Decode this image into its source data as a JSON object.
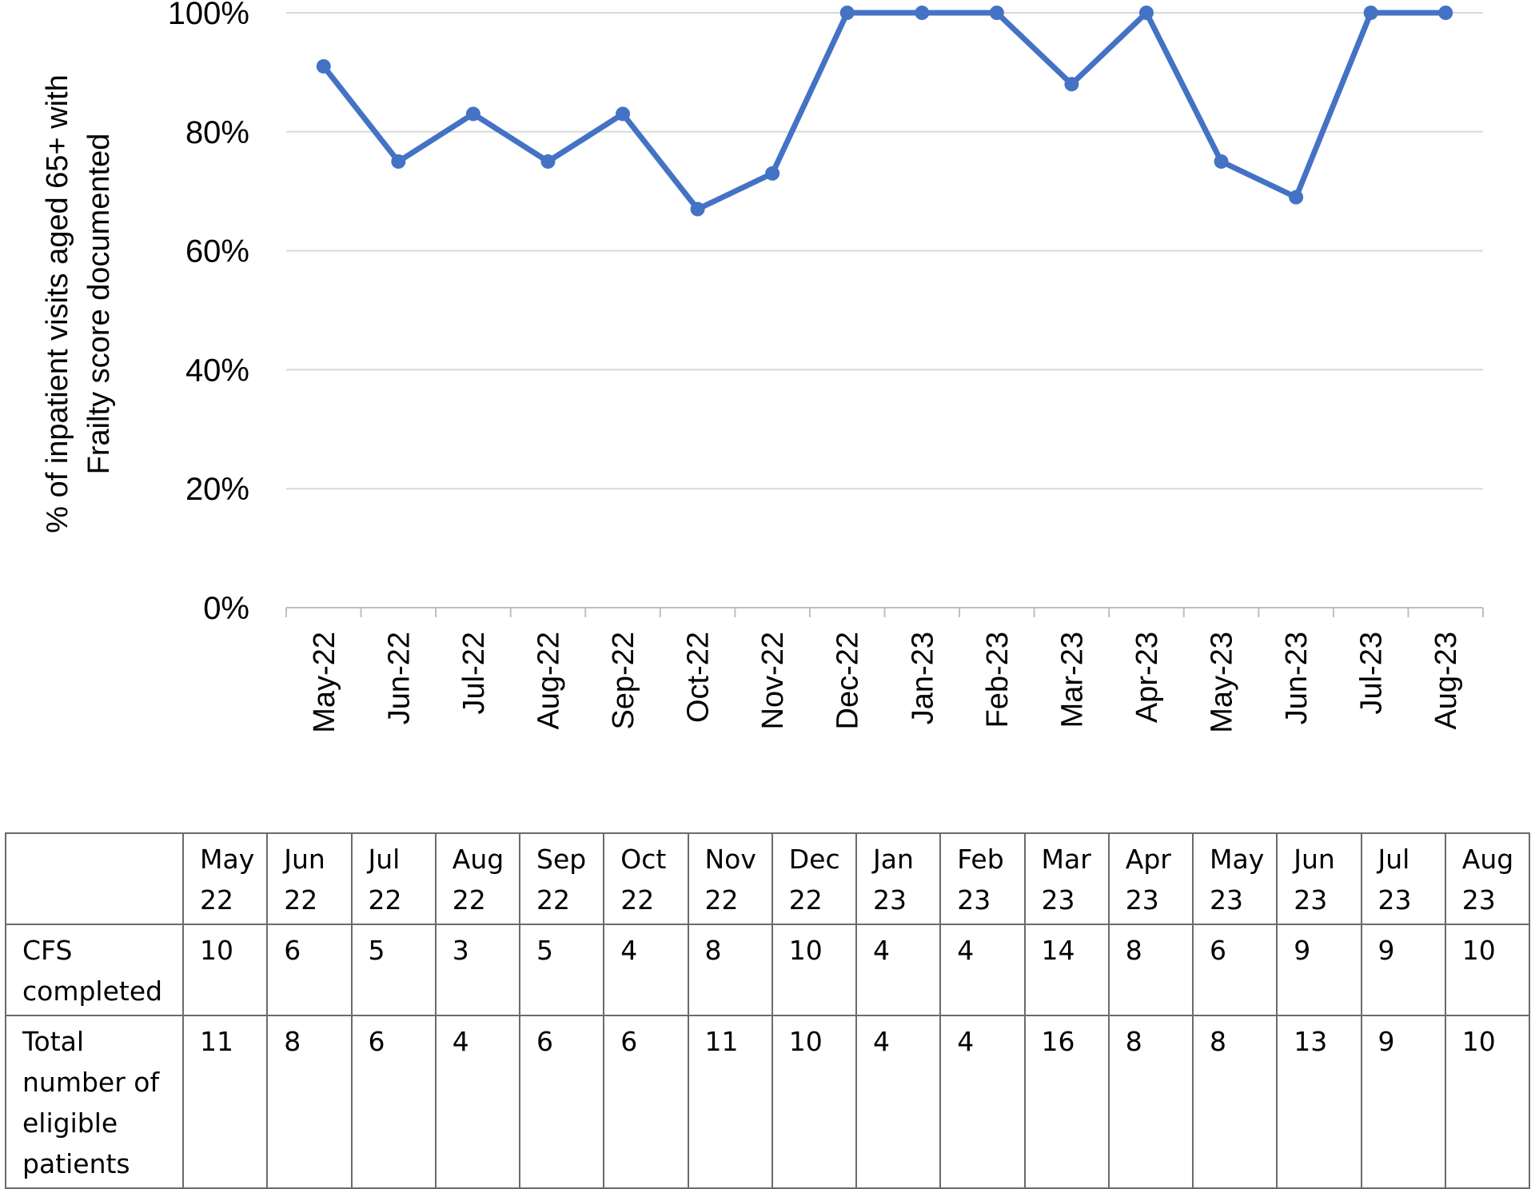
{
  "chart_data": {
    "type": "line",
    "ylabel": "% of inpatient visits aged 65+ with Frailty score documented",
    "ylabel_lines": [
      "% of inpatient visits aged 65+ with",
      "Frailty score documented"
    ],
    "xlabel": "",
    "title": "",
    "categories": [
      "May-22",
      "Jun-22",
      "Jul-22",
      "Aug-22",
      "Sep-22",
      "Oct-22",
      "Nov-22",
      "Dec-22",
      "Jan-23",
      "Feb-23",
      "Mar-23",
      "Apr-23",
      "May-23",
      "Jun-23",
      "Jul-23",
      "Aug-23"
    ],
    "series": [
      {
        "values": [
          91,
          75,
          83,
          75,
          83,
          67,
          73,
          100,
          100,
          100,
          88,
          100,
          75,
          69,
          100,
          100
        ]
      }
    ],
    "ylim": [
      0,
      100
    ],
    "yticks": [
      0,
      20,
      40,
      60,
      80,
      100
    ],
    "ytick_labels": [
      "0%",
      "20%",
      "40%",
      "60%",
      "80%",
      "100%"
    ],
    "grid": true,
    "legend": "none",
    "line_color": "#4472C4",
    "grid_color": "#d9d9d9"
  },
  "table": {
    "header": [
      [
        "May",
        "22"
      ],
      [
        "Jun",
        "22"
      ],
      [
        "Jul",
        "22"
      ],
      [
        "Aug",
        "22"
      ],
      [
        "Sep",
        "22"
      ],
      [
        "Oct",
        "22"
      ],
      [
        "Nov",
        "22"
      ],
      [
        "Dec",
        "22"
      ],
      [
        "Jan",
        "23"
      ],
      [
        "Feb",
        "23"
      ],
      [
        "Mar",
        "23"
      ],
      [
        "Apr",
        "23"
      ],
      [
        "May",
        "23"
      ],
      [
        "Jun",
        "23"
      ],
      [
        "Jul",
        "23"
      ],
      [
        "Aug",
        "23"
      ]
    ],
    "rows": [
      {
        "label": [
          "CFS",
          "completed"
        ],
        "values": [
          "10",
          "6",
          "5",
          "3",
          "5",
          "4",
          "8",
          "10",
          "4",
          "4",
          "14",
          "8",
          "6",
          "9",
          "9",
          "10"
        ]
      },
      {
        "label": [
          "Total",
          "number of",
          "eligible",
          "patients"
        ],
        "values": [
          "11",
          "8",
          "6",
          "4",
          "6",
          "6",
          "11",
          "10",
          "4",
          "4",
          "16",
          "8",
          "8",
          "13",
          "9",
          "10"
        ]
      }
    ]
  }
}
